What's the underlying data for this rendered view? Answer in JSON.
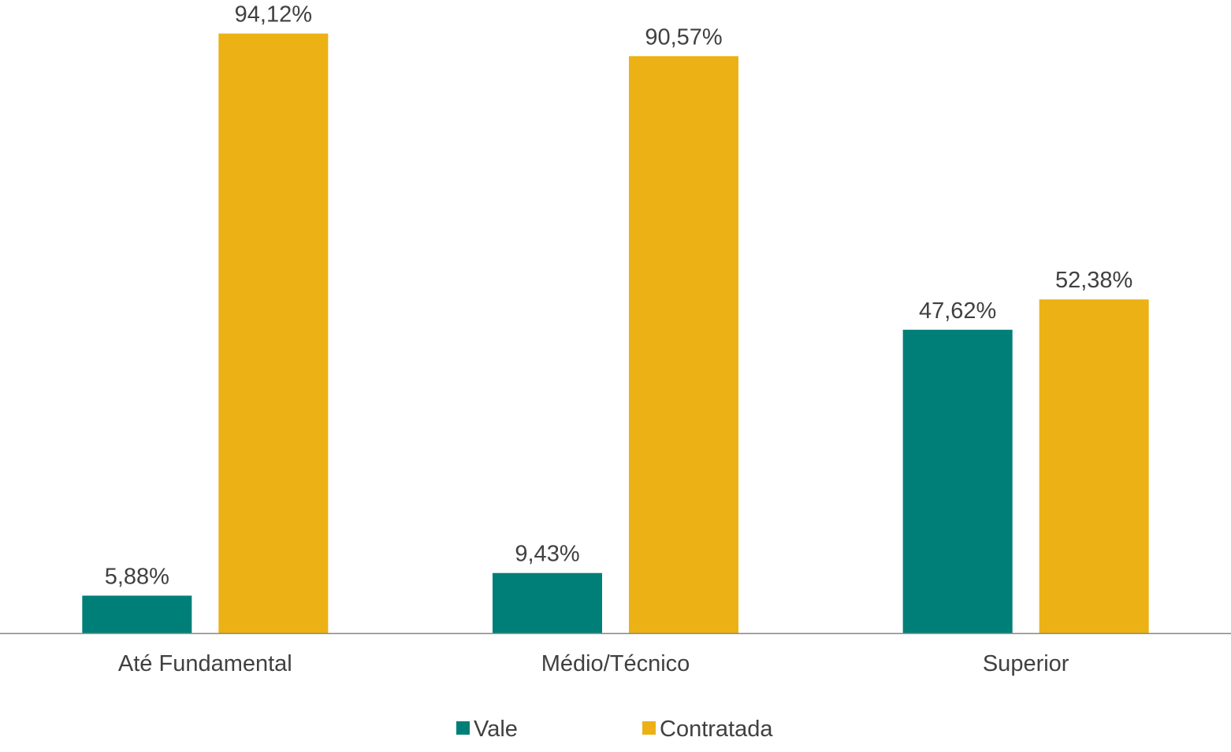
{
  "chart_data": {
    "type": "bar",
    "title": "",
    "xlabel": "",
    "ylabel": "",
    "ylim": [
      0,
      100
    ],
    "grid": false,
    "legend_position": "bottom",
    "categories": [
      "Até Fundamental",
      "Médio/Técnico",
      "Superior"
    ],
    "series": [
      {
        "name": "Vale",
        "color": "#007F78",
        "values": [
          5.88,
          9.43,
          47.62
        ],
        "labels": [
          "5,88%",
          "9,43%",
          "47,62%"
        ]
      },
      {
        "name": "Contratada",
        "color": "#ECB115",
        "values": [
          94.12,
          90.57,
          52.38
        ],
        "labels": [
          "94,12%",
          "90,57%",
          "52,38%"
        ]
      }
    ]
  },
  "colors": {
    "axis": "#868686",
    "text": "#404040"
  }
}
